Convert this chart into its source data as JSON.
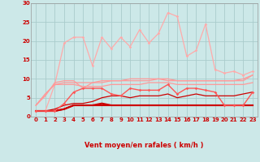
{
  "x": [
    0,
    1,
    2,
    3,
    4,
    5,
    6,
    7,
    8,
    9,
    10,
    11,
    12,
    13,
    14,
    15,
    16,
    17,
    18,
    19,
    20,
    21,
    22,
    23
  ],
  "background_color": "#cce8e8",
  "grid_color": "#aacccc",
  "xlabel": "Vent moyen/en rafales ( km/h )",
  "ylim": [
    0,
    30
  ],
  "yticks": [
    0,
    5,
    10,
    15,
    20,
    25,
    30
  ],
  "series": [
    {
      "values": [
        1.5,
        1.5,
        1.5,
        2.0,
        3.0,
        3.0,
        3.0,
        3.0,
        3.0,
        3.0,
        3.0,
        3.0,
        3.0,
        3.0,
        3.0,
        3.0,
        3.0,
        3.0,
        3.0,
        3.0,
        3.0,
        3.0,
        3.0,
        3.0
      ],
      "color": "#cc0000",
      "lw": 1.5,
      "marker": null,
      "zorder": 5
    },
    {
      "values": [
        1.5,
        1.5,
        1.5,
        2.0,
        3.0,
        3.0,
        3.0,
        3.5,
        3.0,
        3.0,
        3.0,
        3.0,
        3.0,
        3.0,
        3.0,
        3.0,
        3.0,
        3.0,
        3.0,
        3.0,
        3.0,
        3.0,
        3.0,
        3.0
      ],
      "color": "#cc0000",
      "lw": 1.5,
      "marker": null,
      "zorder": 5
    },
    {
      "values": [
        1.5,
        1.5,
        2.0,
        3.0,
        3.5,
        3.5,
        4.0,
        5.0,
        5.5,
        5.5,
        5.0,
        5.5,
        5.5,
        5.5,
        6.0,
        5.0,
        5.5,
        6.0,
        5.5,
        5.5,
        5.5,
        5.5,
        6.0,
        6.5
      ],
      "color": "#cc0000",
      "lw": 0.9,
      "marker": null,
      "zorder": 4
    },
    {
      "values": [
        3.0,
        6.0,
        8.5,
        8.5,
        8.5,
        8.0,
        8.0,
        8.0,
        8.5,
        8.5,
        8.5,
        8.5,
        9.0,
        9.0,
        9.0,
        8.5,
        8.5,
        8.5,
        8.5,
        8.5,
        8.5,
        8.5,
        8.5,
        9.0
      ],
      "color": "#ff9999",
      "lw": 0.9,
      "marker": null,
      "zorder": 3
    },
    {
      "values": [
        3.0,
        6.0,
        8.5,
        9.0,
        9.0,
        9.0,
        9.0,
        9.5,
        9.5,
        9.5,
        10.0,
        10.0,
        10.0,
        10.0,
        10.0,
        9.5,
        9.5,
        9.5,
        9.5,
        9.5,
        9.5,
        9.5,
        10.0,
        11.0
      ],
      "color": "#ff9999",
      "lw": 0.9,
      "marker": null,
      "zorder": 3
    },
    {
      "values": [
        3.0,
        5.5,
        9.0,
        9.5,
        9.5,
        7.5,
        9.0,
        9.0,
        9.5,
        9.5,
        9.5,
        9.5,
        9.5,
        10.0,
        9.5,
        9.5,
        9.5,
        9.5,
        9.5,
        9.5,
        9.5,
        9.5,
        9.5,
        11.0
      ],
      "color": "#ff9999",
      "lw": 0.9,
      "marker": null,
      "zorder": 3
    },
    {
      "values": [
        1.5,
        1.5,
        1.5,
        3.5,
        6.5,
        7.5,
        7.5,
        7.5,
        6.0,
        5.5,
        7.5,
        7.0,
        7.0,
        7.0,
        8.5,
        6.0,
        7.5,
        7.5,
        7.0,
        6.5,
        3.0,
        3.0,
        3.0,
        6.5
      ],
      "color": "#ff5555",
      "lw": 1.0,
      "marker": "D",
      "ms": 1.8,
      "zorder": 6
    },
    {
      "values": [
        1.5,
        1.5,
        8.5,
        19.5,
        21.0,
        21.0,
        13.5,
        21.0,
        18.0,
        21.0,
        18.5,
        23.0,
        19.5,
        22.0,
        27.5,
        26.5,
        16.0,
        17.5,
        24.5,
        12.5,
        11.5,
        12.0,
        11.0,
        12.0
      ],
      "color": "#ffaaaa",
      "lw": 0.9,
      "marker": "D",
      "ms": 1.8,
      "zorder": 2
    }
  ],
  "arrow_symbols": [
    "↓",
    "→",
    "↘",
    "↓",
    "↙",
    "↙",
    "↙",
    "↙",
    "↙",
    "↙",
    "↙",
    "↙",
    "↙",
    "↙",
    "↙",
    "↙",
    "↙",
    "↙",
    "↙",
    "↙",
    "↙",
    "↙",
    "↙",
    "↙"
  ],
  "tick_color": "#cc0000",
  "tick_size": 5.0,
  "xlabel_color": "#cc0000",
  "xlabel_size": 6.0
}
